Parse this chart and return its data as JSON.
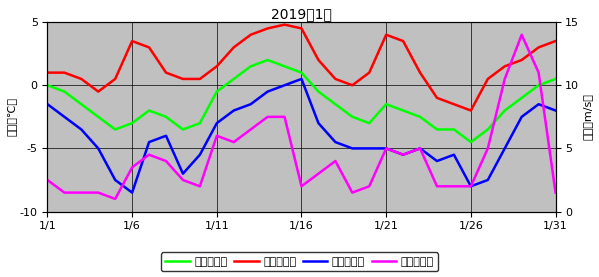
{
  "title": "2019年1月",
  "days": [
    1,
    2,
    3,
    4,
    5,
    6,
    7,
    8,
    9,
    10,
    11,
    12,
    13,
    14,
    15,
    16,
    17,
    18,
    19,
    20,
    21,
    22,
    23,
    24,
    25,
    26,
    27,
    28,
    29,
    30,
    31
  ],
  "avg_temp": [
    0.0,
    -0.5,
    -1.5,
    -2.5,
    -3.5,
    -3.0,
    -2.0,
    -2.5,
    -3.5,
    -3.0,
    -0.5,
    0.5,
    1.5,
    2.0,
    1.5,
    1.0,
    -0.5,
    -1.5,
    -2.5,
    -3.0,
    -1.5,
    -2.0,
    -2.5,
    -3.5,
    -3.5,
    -4.5,
    -3.5,
    -2.0,
    -1.0,
    0.0,
    0.5
  ],
  "max_temp": [
    1.0,
    1.0,
    0.5,
    -0.5,
    0.5,
    3.5,
    3.0,
    1.0,
    0.5,
    0.5,
    1.5,
    3.0,
    4.0,
    4.5,
    4.8,
    4.5,
    2.0,
    0.5,
    0.0,
    1.0,
    4.0,
    3.5,
    1.0,
    -1.0,
    -1.5,
    -2.0,
    0.5,
    1.5,
    2.0,
    3.0,
    3.5
  ],
  "min_temp": [
    -1.5,
    -2.5,
    -3.5,
    -5.0,
    -7.5,
    -8.5,
    -4.5,
    -4.0,
    -7.0,
    -5.5,
    -3.0,
    -2.0,
    -1.5,
    -0.5,
    0.0,
    0.5,
    -3.0,
    -4.5,
    -5.0,
    -5.0,
    -5.0,
    -5.5,
    -5.0,
    -6.0,
    -5.5,
    -8.0,
    -7.5,
    -5.0,
    -2.5,
    -1.5,
    -2.0
  ],
  "wind_speed": [
    2.5,
    1.5,
    1.5,
    1.5,
    1.0,
    3.5,
    4.5,
    4.0,
    2.5,
    2.0,
    6.0,
    5.5,
    6.5,
    7.5,
    7.5,
    2.0,
    3.0,
    4.0,
    1.5,
    2.0,
    5.0,
    4.5,
    5.0,
    2.0,
    2.0,
    2.0,
    5.0,
    10.5,
    14.0,
    11.0,
    1.5
  ],
  "avg_color": "#00ff00",
  "max_color": "#ff0000",
  "min_color": "#0000ff",
  "wind_color": "#ff00ff",
  "bg_color": "#c0c0c0",
  "fig_color": "#ffffff",
  "temp_ylim": [
    -10,
    5
  ],
  "wind_ylim": [
    0,
    15
  ],
  "temp_yticks": [
    -10,
    -5,
    0,
    5
  ],
  "wind_yticks": [
    0,
    5,
    10,
    15
  ],
  "xtick_days": [
    1,
    6,
    11,
    16,
    21,
    26,
    31
  ],
  "ylabel_left": "気温（℃）",
  "ylabel_right": "風速（m/s）",
  "legend_labels": [
    "日平均気温",
    "日最高気温",
    "日最低気温",
    "日平均風速"
  ],
  "line_width": 1.8,
  "title_fontsize": 10,
  "label_fontsize": 8,
  "tick_fontsize": 8,
  "legend_fontsize": 8
}
